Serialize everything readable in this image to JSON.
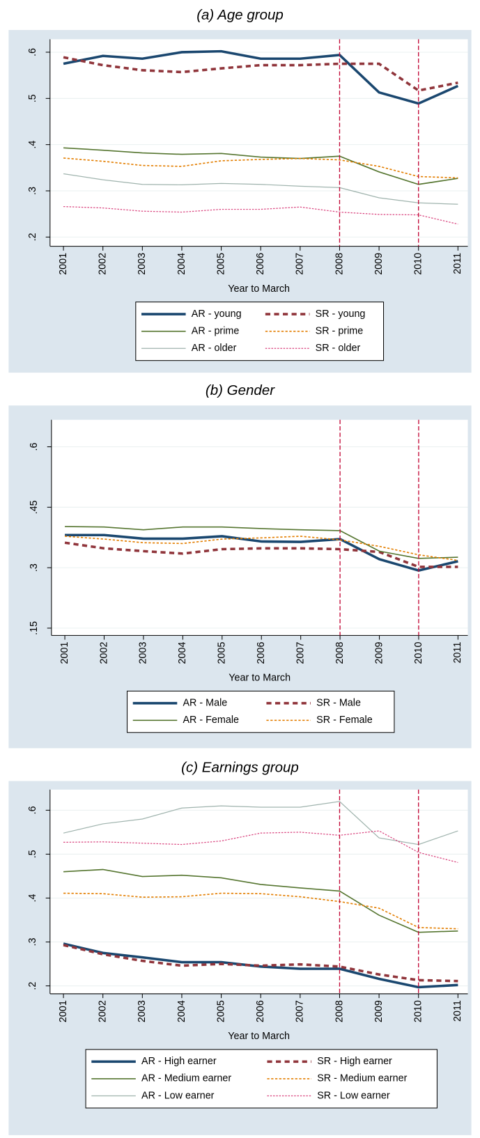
{
  "chart_data": [
    {
      "type": "line",
      "title": "(a)  Age group",
      "xlabel": "Year to March",
      "x": [
        2001,
        2002,
        2003,
        2004,
        2005,
        2006,
        2007,
        2008,
        2009,
        2010,
        2011
      ],
      "xlim": [
        2000.66,
        2011.25
      ],
      "xticks": [
        2001,
        2002,
        2003,
        2004,
        2005,
        2006,
        2007,
        2008,
        2009,
        2010,
        2011
      ],
      "ylim": [
        0.18,
        0.628
      ],
      "yticks": [
        {
          "value": 0.2,
          "label": ".2"
        },
        {
          "value": 0.3,
          "label": ".3"
        },
        {
          "value": 0.4,
          "label": ".4"
        },
        {
          "value": 0.5,
          "label": ".5"
        },
        {
          "value": 0.6,
          "label": ".6"
        }
      ],
      "grid": true,
      "vlines": [
        2008,
        2010
      ],
      "vline_color": "#c10534",
      "series": [
        {
          "name": "AR - young",
          "color": "#1a476f",
          "dash": false,
          "width": 3.5,
          "values": [
            0.575,
            0.592,
            0.586,
            0.6,
            0.602,
            0.586,
            0.586,
            0.594,
            0.513,
            0.489,
            0.527
          ]
        },
        {
          "name": "SR - young",
          "color": "#90353b",
          "dash": true,
          "width": 3.5,
          "values": [
            0.589,
            0.572,
            0.561,
            0.557,
            0.565,
            0.572,
            0.572,
            0.575,
            0.575,
            0.517,
            0.534
          ]
        },
        {
          "name": "AR - prime",
          "color": "#55752f",
          "dash": false,
          "width": 1.6,
          "values": [
            0.393,
            0.388,
            0.382,
            0.379,
            0.381,
            0.373,
            0.37,
            0.375,
            0.341,
            0.314,
            0.327
          ]
        },
        {
          "name": "SR - prime",
          "color": "#e37e00",
          "dash": true,
          "width": 1.6,
          "values": [
            0.371,
            0.364,
            0.355,
            0.353,
            0.365,
            0.368,
            0.37,
            0.367,
            0.353,
            0.331,
            0.328
          ]
        },
        {
          "name": "AR - older",
          "color": "#9fb3ad",
          "dash": false,
          "width": 1.2,
          "values": [
            0.337,
            0.324,
            0.314,
            0.313,
            0.316,
            0.314,
            0.31,
            0.307,
            0.285,
            0.274,
            0.271
          ]
        },
        {
          "name": "SR - older",
          "color": "#d9427d",
          "dash": true,
          "width": 1.2,
          "values": [
            0.266,
            0.263,
            0.256,
            0.254,
            0.26,
            0.26,
            0.265,
            0.254,
            0.249,
            0.248,
            0.228
          ]
        }
      ]
    },
    {
      "type": "line",
      "title": "(b)  Gender",
      "xlabel": "Year to March",
      "x": [
        2001,
        2002,
        2003,
        2004,
        2005,
        2006,
        2007,
        2008,
        2009,
        2010,
        2011
      ],
      "xlim": [
        2000.66,
        2011.25
      ],
      "xticks": [
        2001,
        2002,
        2003,
        2004,
        2005,
        2006,
        2007,
        2008,
        2009,
        2010,
        2011
      ],
      "ylim": [
        0.132,
        0.667
      ],
      "yticks": [
        {
          "value": 0.15,
          "label": ".15"
        },
        {
          "value": 0.3,
          "label": ".3"
        },
        {
          "value": 0.45,
          "label": ".45"
        },
        {
          "value": 0.6,
          "label": ".6"
        }
      ],
      "grid": true,
      "vlines": [
        2008,
        2010
      ],
      "vline_color": "#c10534",
      "series": [
        {
          "name": "AR - Male",
          "color": "#1a476f",
          "dash": false,
          "width": 3.5,
          "values": [
            0.381,
            0.381,
            0.372,
            0.372,
            0.378,
            0.365,
            0.364,
            0.371,
            0.321,
            0.293,
            0.316
          ]
        },
        {
          "name": "SR - Male",
          "color": "#90353b",
          "dash": true,
          "width": 3.5,
          "values": [
            0.362,
            0.348,
            0.341,
            0.335,
            0.346,
            0.348,
            0.348,
            0.346,
            0.339,
            0.302,
            0.302
          ]
        },
        {
          "name": "AR - Female",
          "color": "#55752f",
          "dash": false,
          "width": 1.6,
          "values": [
            0.402,
            0.401,
            0.394,
            0.401,
            0.401,
            0.397,
            0.394,
            0.392,
            0.341,
            0.323,
            0.326
          ]
        },
        {
          "name": "SR - Female",
          "color": "#e37e00",
          "dash": true,
          "width": 1.6,
          "values": [
            0.378,
            0.371,
            0.362,
            0.36,
            0.371,
            0.374,
            0.378,
            0.369,
            0.353,
            0.332,
            0.318
          ]
        }
      ]
    },
    {
      "type": "line",
      "title": "(c)  Earnings group",
      "xlabel": "Year to March",
      "x": [
        2001,
        2002,
        2003,
        2004,
        2005,
        2006,
        2007,
        2008,
        2009,
        2010,
        2011
      ],
      "xlim": [
        2000.66,
        2011.25
      ],
      "xticks": [
        2001,
        2002,
        2003,
        2004,
        2005,
        2006,
        2007,
        2008,
        2009,
        2010,
        2011
      ],
      "ylim": [
        0.182,
        0.647
      ],
      "yticks": [
        {
          "value": 0.2,
          "label": ".2"
        },
        {
          "value": 0.3,
          "label": ".3"
        },
        {
          "value": 0.4,
          "label": ".4"
        },
        {
          "value": 0.5,
          "label": ".5"
        },
        {
          "value": 0.6,
          "label": ".6"
        }
      ],
      "grid": true,
      "vlines": [
        2008,
        2010
      ],
      "vline_color": "#c10534",
      "series": [
        {
          "name": "AR - High earner",
          "color": "#1a476f",
          "dash": false,
          "width": 3.5,
          "values": [
            0.296,
            0.275,
            0.265,
            0.254,
            0.254,
            0.244,
            0.239,
            0.239,
            0.216,
            0.197,
            0.202
          ]
        },
        {
          "name": "SR - High earner",
          "color": "#90353b",
          "dash": true,
          "width": 3.5,
          "values": [
            0.293,
            0.272,
            0.257,
            0.246,
            0.25,
            0.246,
            0.249,
            0.244,
            0.226,
            0.213,
            0.211
          ]
        },
        {
          "name": "AR - Medium earner",
          "color": "#55752f",
          "dash": false,
          "width": 1.6,
          "values": [
            0.46,
            0.465,
            0.449,
            0.452,
            0.446,
            0.431,
            0.423,
            0.416,
            0.361,
            0.322,
            0.325
          ]
        },
        {
          "name": "SR - Medium earner",
          "color": "#e37e00",
          "dash": true,
          "width": 1.6,
          "values": [
            0.411,
            0.41,
            0.402,
            0.403,
            0.411,
            0.41,
            0.403,
            0.392,
            0.377,
            0.333,
            0.33
          ]
        },
        {
          "name": "AR - Low earner",
          "color": "#9fb3ad",
          "dash": false,
          "width": 1.2,
          "values": [
            0.548,
            0.569,
            0.58,
            0.605,
            0.61,
            0.607,
            0.607,
            0.62,
            0.537,
            0.522,
            0.553
          ]
        },
        {
          "name": "SR - Low earner",
          "color": "#d9427d",
          "dash": true,
          "width": 1.2,
          "values": [
            0.527,
            0.528,
            0.525,
            0.522,
            0.53,
            0.548,
            0.55,
            0.543,
            0.553,
            0.504,
            0.481
          ]
        }
      ]
    }
  ]
}
